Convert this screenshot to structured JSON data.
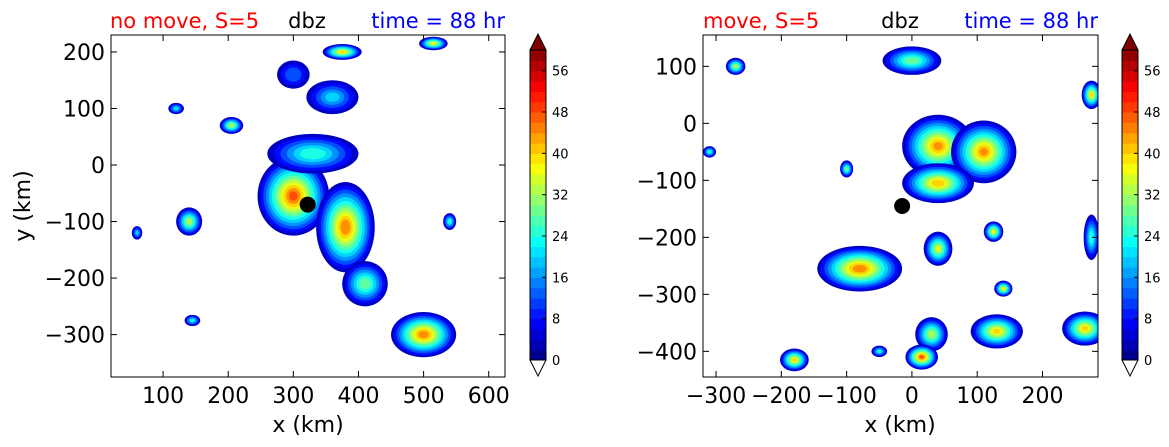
{
  "chart_data": [
    {
      "type": "heatmap",
      "panel": "left",
      "title_left": "no move, S=5",
      "title_center": "dbz",
      "title_right": "time = 88 hr",
      "xlabel": "x (km)",
      "ylabel": "y (km)",
      "xlim": [
        20,
        625
      ],
      "ylim": [
        -375,
        230
      ],
      "xticks": [
        100,
        200,
        300,
        400,
        500,
        600
      ],
      "yticks": [
        200,
        100,
        0,
        -100,
        -200,
        -300
      ],
      "xtick_labels": [
        "100",
        "200",
        "300",
        "400",
        "500",
        "600"
      ],
      "ytick_labels": [
        "200",
        "100",
        "0",
        "−100",
        "−200",
        "−300"
      ],
      "center_marker": {
        "x": 322,
        "y": -70
      },
      "cells": [
        {
          "x": 300,
          "y": -55,
          "rx": 55,
          "ry": 70,
          "peak": 48
        },
        {
          "x": 330,
          "y": 20,
          "rx": 70,
          "ry": 35,
          "peak": 26
        },
        {
          "x": 380,
          "y": -110,
          "rx": 45,
          "ry": 80,
          "peak": 46
        },
        {
          "x": 410,
          "y": -210,
          "rx": 35,
          "ry": 40,
          "peak": 30
        },
        {
          "x": 360,
          "y": 120,
          "rx": 40,
          "ry": 30,
          "peak": 20
        },
        {
          "x": 205,
          "y": 70,
          "rx": 18,
          "ry": 15,
          "peak": 34
        },
        {
          "x": 140,
          "y": -100,
          "rx": 20,
          "ry": 25,
          "peak": 34
        },
        {
          "x": 120,
          "y": 100,
          "rx": 12,
          "ry": 10,
          "peak": 22
        },
        {
          "x": 60,
          "y": -120,
          "rx": 8,
          "ry": 12,
          "peak": 20
        },
        {
          "x": 145,
          "y": -275,
          "rx": 12,
          "ry": 10,
          "peak": 24
        },
        {
          "x": 375,
          "y": 200,
          "rx": 30,
          "ry": 14,
          "peak": 40
        },
        {
          "x": 515,
          "y": 215,
          "rx": 22,
          "ry": 12,
          "peak": 38
        },
        {
          "x": 500,
          "y": -300,
          "rx": 50,
          "ry": 40,
          "peak": 46
        },
        {
          "x": 540,
          "y": -100,
          "rx": 10,
          "ry": 15,
          "peak": 26
        },
        {
          "x": 300,
          "y": 160,
          "rx": 25,
          "ry": 25,
          "peak": 14
        }
      ],
      "colorbar": {
        "min": 0,
        "max": 60,
        "ticks": [
          0,
          8,
          16,
          24,
          32,
          40,
          48,
          56
        ]
      }
    },
    {
      "type": "heatmap",
      "panel": "right",
      "title_left": "move, S=5",
      "title_center": "dbz",
      "title_right": "time = 88 hr",
      "xlabel": "x (km)",
      "ylabel": "",
      "xlim": [
        -320,
        285
      ],
      "ylim": [
        -445,
        155
      ],
      "xticks": [
        -300,
        -200,
        -100,
        0,
        100,
        200
      ],
      "yticks": [
        100,
        0,
        -100,
        -200,
        -300,
        -400
      ],
      "xtick_labels": [
        "−300",
        "−200",
        "−100",
        "0",
        "100",
        "200"
      ],
      "ytick_labels": [
        "100",
        "0",
        "−100",
        "−200",
        "−300",
        "−400"
      ],
      "center_marker": {
        "x": -15,
        "y": -145
      },
      "cells": [
        {
          "x": 40,
          "y": -40,
          "rx": 55,
          "ry": 55,
          "peak": 44
        },
        {
          "x": 110,
          "y": -50,
          "rx": 50,
          "ry": 55,
          "peak": 44
        },
        {
          "x": 40,
          "y": -105,
          "rx": 55,
          "ry": 35,
          "peak": 42
        },
        {
          "x": 0,
          "y": 110,
          "rx": 45,
          "ry": 25,
          "peak": 30
        },
        {
          "x": -80,
          "y": -255,
          "rx": 65,
          "ry": 40,
          "peak": 46
        },
        {
          "x": 40,
          "y": -220,
          "rx": 22,
          "ry": 30,
          "peak": 36
        },
        {
          "x": 125,
          "y": -190,
          "rx": 15,
          "ry": 18,
          "peak": 38
        },
        {
          "x": -270,
          "y": 100,
          "rx": 15,
          "ry": 15,
          "peak": 34
        },
        {
          "x": -100,
          "y": -80,
          "rx": 10,
          "ry": 15,
          "peak": 30
        },
        {
          "x": -310,
          "y": -50,
          "rx": 10,
          "ry": 10,
          "peak": 26
        },
        {
          "x": 140,
          "y": -290,
          "rx": 14,
          "ry": 14,
          "peak": 38
        },
        {
          "x": 130,
          "y": -365,
          "rx": 40,
          "ry": 30,
          "peak": 40
        },
        {
          "x": 30,
          "y": -370,
          "rx": 25,
          "ry": 30,
          "peak": 34
        },
        {
          "x": 15,
          "y": -410,
          "rx": 25,
          "ry": 22,
          "peak": 48
        },
        {
          "x": -180,
          "y": -415,
          "rx": 22,
          "ry": 20,
          "peak": 40
        },
        {
          "x": 265,
          "y": -360,
          "rx": 35,
          "ry": 30,
          "peak": 40
        },
        {
          "x": 275,
          "y": 50,
          "rx": 15,
          "ry": 25,
          "peak": 40
        },
        {
          "x": 275,
          "y": -200,
          "rx": 12,
          "ry": 40,
          "peak": 26
        },
        {
          "x": -50,
          "y": -400,
          "rx": 12,
          "ry": 10,
          "peak": 24
        }
      ],
      "colorbar": {
        "min": 0,
        "max": 60,
        "ticks": [
          0,
          8,
          16,
          24,
          32,
          40,
          48,
          56
        ]
      }
    }
  ],
  "colors": {
    "title_red": "#ff0000",
    "title_blue": "#0000ff",
    "title_black": "#000000",
    "marker": "#000000"
  }
}
